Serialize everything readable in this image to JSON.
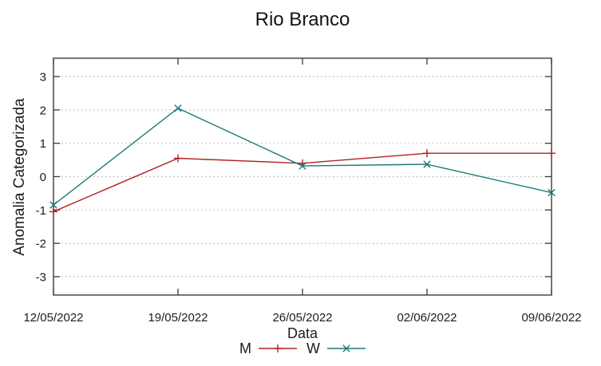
{
  "chart_data": {
    "type": "line",
    "title": "Rio Branco",
    "xlabel": "Data",
    "ylabel": "Anomalia Categorizada",
    "categories": [
      "12/05/2022",
      "19/05/2022",
      "26/05/2022",
      "02/06/2022",
      "09/06/2022"
    ],
    "series": [
      {
        "name": "M",
        "color": "#b42020",
        "marker": "plus",
        "values": [
          -1.05,
          0.55,
          0.4,
          0.7,
          0.7
        ]
      },
      {
        "name": "W",
        "color": "#1a7a78",
        "marker": "x",
        "values": [
          -0.85,
          2.05,
          0.32,
          0.37,
          -0.48
        ]
      }
    ],
    "yticks": [
      -3,
      -2,
      -1,
      0,
      1,
      2,
      3
    ],
    "ylim": [
      -3.55,
      3.55
    ],
    "grid": {
      "horizontal": "dotted",
      "vertical": "none",
      "color": "#bcbcbc"
    },
    "axis_color": "#3c3c3c",
    "text_color": "#1c1c1c",
    "legend_position": "bottom-center"
  }
}
